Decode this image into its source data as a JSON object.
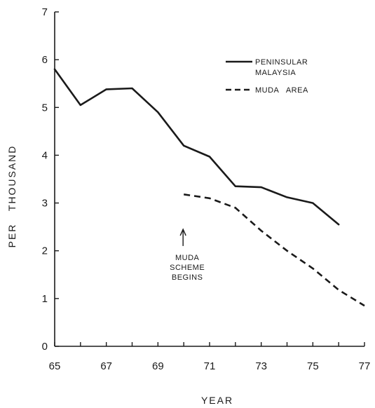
{
  "chart_data": {
    "type": "line",
    "xlabel": "YEAR",
    "ylabel": "PER   THOUSAND",
    "xlim": [
      65,
      77
    ],
    "ylim": [
      0,
      7
    ],
    "x_ticks": [
      "65",
      "67",
      "69",
      "71",
      "73",
      "75",
      "77"
    ],
    "y_ticks": [
      "0",
      "1",
      "2",
      "3",
      "4",
      "5",
      "6",
      "7"
    ],
    "grid": false,
    "legend_position": "top-right",
    "series": [
      {
        "name_lines": [
          "PENINSULAR",
          "MALAYSIA"
        ],
        "style": "solid",
        "x": [
          65,
          66,
          67,
          68,
          69,
          70,
          71,
          72,
          73,
          74,
          75,
          76
        ],
        "y": [
          5.8,
          5.05,
          5.38,
          5.4,
          4.9,
          4.2,
          3.97,
          3.35,
          3.33,
          3.12,
          3.0,
          2.55
        ]
      },
      {
        "name_lines": [
          "MUDA   AREA"
        ],
        "style": "dashed",
        "x": [
          70,
          71,
          72,
          73,
          74,
          75,
          76,
          77
        ],
        "y": [
          3.18,
          3.1,
          2.9,
          2.42,
          2.0,
          1.63,
          1.18,
          0.85
        ]
      }
    ],
    "annotation": {
      "lines": [
        "MUDA",
        "SCHEME",
        "BEGINS"
      ],
      "x": 70,
      "arrow_from_y": 2.1,
      "arrow_to_y": 2.45
    },
    "colors": {
      "line": "#1a1a1a",
      "background": "#ffffff"
    }
  }
}
